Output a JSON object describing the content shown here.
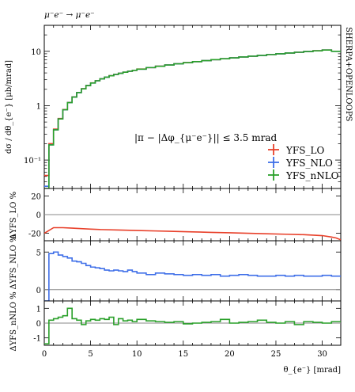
{
  "header": {
    "process": "μ⁻e⁻ → μ⁻e⁻",
    "generator": "SHERPA+OPENLOOPS",
    "cut": "|π − |Δφ_{μ⁻e⁻}|| ≤ 3.5 mrad"
  },
  "colors": {
    "LO": "#e8402a",
    "NLO": "#3f6fe8",
    "nNLO": "#2aa02a",
    "ref": "#888888"
  },
  "chart_data": [
    {
      "type": "line",
      "panel": "main",
      "ylabel": "dσ / dθ_{e⁻} [μb/mrad]",
      "yscale": "log",
      "ylim": [
        0.03,
        30
      ],
      "yticks": [
        "10",
        "1",
        "10⁻¹"
      ],
      "xlim": [
        0,
        32
      ],
      "bin_edges": [
        0,
        0.5,
        1,
        1.5,
        2,
        2.5,
        3,
        3.5,
        4,
        4.5,
        5,
        5.5,
        6,
        6.5,
        7,
        7.5,
        8,
        8.5,
        9,
        9.5,
        10,
        11,
        12,
        13,
        14,
        15,
        16,
        17,
        18,
        19,
        20,
        21,
        22,
        23,
        24,
        25,
        26,
        27,
        28,
        29,
        30,
        31,
        32
      ],
      "legend": [
        "YFS_LO",
        "YFS_NLO",
        "YFS_nNLO"
      ],
      "legend_position": "lower-right",
      "series": [
        {
          "name": "YFS_LO",
          "color": "#e8402a",
          "values": [
            0.052,
            0.2,
            0.37,
            0.58,
            0.85,
            1.15,
            1.45,
            1.75,
            2.05,
            2.35,
            2.62,
            2.88,
            3.12,
            3.35,
            3.56,
            3.76,
            3.95,
            4.13,
            4.3,
            4.47,
            4.71,
            5.02,
            5.32,
            5.61,
            5.9,
            6.18,
            6.46,
            6.74,
            7.02,
            7.3,
            7.58,
            7.86,
            8.14,
            8.43,
            8.72,
            9.01,
            9.3,
            9.6,
            9.91,
            10.22,
            10.55,
            10.0
          ]
        },
        {
          "name": "YFS_NLO",
          "color": "#3f6fe8",
          "values": [
            0.033,
            0.19,
            0.36,
            0.57,
            0.84,
            1.14,
            1.44,
            1.74,
            2.04,
            2.34,
            2.61,
            2.87,
            3.11,
            3.34,
            3.55,
            3.75,
            3.94,
            4.12,
            4.29,
            4.46,
            4.7,
            5.01,
            5.31,
            5.6,
            5.89,
            6.17,
            6.45,
            6.73,
            7.01,
            7.29,
            7.57,
            7.85,
            8.13,
            8.42,
            8.71,
            9.0,
            9.29,
            9.59,
            9.9,
            10.21,
            10.54,
            9.99
          ]
        },
        {
          "name": "YFS_nNLO",
          "color": "#2aa02a",
          "values": [
            0.03,
            0.19,
            0.36,
            0.57,
            0.84,
            1.14,
            1.44,
            1.74,
            2.04,
            2.34,
            2.61,
            2.87,
            3.11,
            3.34,
            3.55,
            3.75,
            3.94,
            4.12,
            4.29,
            4.46,
            4.7,
            5.01,
            5.31,
            5.6,
            5.89,
            6.17,
            6.45,
            6.73,
            7.01,
            7.29,
            7.57,
            7.85,
            8.13,
            8.42,
            8.71,
            9.0,
            9.29,
            9.59,
            9.9,
            10.21,
            10.54,
            9.99
          ]
        }
      ]
    },
    {
      "type": "line",
      "panel": "ratio-LO",
      "ylabel": "ΔYFS_LO %",
      "ylim": [
        -28,
        28
      ],
      "yticks": [
        20,
        0,
        -20
      ],
      "xlim": [
        0,
        32
      ],
      "series": [
        {
          "name": "YFS_LO",
          "color": "#e8402a",
          "x": [
            0,
            0.5,
            1,
            2,
            3,
            4,
            5,
            6,
            8,
            10,
            12,
            14,
            16,
            18,
            20,
            22,
            24,
            26,
            28,
            29,
            30,
            31,
            31.5,
            32
          ],
          "y": [
            -20,
            -17,
            -14,
            -14,
            -14.5,
            -15,
            -15.5,
            -16,
            -16.5,
            -17,
            -17.5,
            -18,
            -18.5,
            -19,
            -19.5,
            -20,
            -20.5,
            -21,
            -21.5,
            -22,
            -22.5,
            -24,
            -25,
            -27
          ]
        }
      ]
    },
    {
      "type": "line",
      "panel": "ratio-NLO",
      "ylabel": "ΔYFS_NLO %",
      "ylim": [
        -1.5,
        6.5
      ],
      "yticks": [
        5,
        0
      ],
      "xlim": [
        0,
        32
      ],
      "series": [
        {
          "name": "YFS_NLO",
          "color": "#3f6fe8",
          "bin_edges": [
            0,
            0.5,
            1,
            1.5,
            2,
            2.5,
            3,
            3.5,
            4,
            4.5,
            5,
            5.5,
            6,
            6.5,
            7,
            7.5,
            8,
            8.5,
            9,
            9.5,
            10,
            11,
            12,
            13,
            14,
            15,
            16,
            17,
            18,
            19,
            20,
            21,
            22,
            23,
            24,
            25,
            26,
            27,
            28,
            29,
            30,
            31,
            32
          ],
          "values": [
            -1.5,
            4.8,
            5.0,
            4.6,
            4.4,
            4.2,
            3.8,
            3.7,
            3.5,
            3.2,
            3.0,
            2.9,
            2.8,
            2.6,
            2.5,
            2.6,
            2.5,
            2.4,
            2.6,
            2.4,
            2.2,
            2.0,
            2.2,
            2.1,
            2.0,
            1.9,
            2.0,
            1.9,
            2.0,
            1.8,
            1.9,
            2.0,
            1.9,
            1.8,
            1.8,
            1.9,
            1.8,
            1.9,
            1.8,
            1.8,
            1.9,
            1.8
          ]
        }
      ]
    },
    {
      "type": "line",
      "panel": "ratio-nNLO",
      "ylabel": "ΔYFS_nNLO %",
      "ylim": [
        -1.5,
        1.5
      ],
      "yticks": [
        1,
        0,
        -1
      ],
      "xlabel": "θ_{e⁻} [mrad]",
      "xlim": [
        0,
        32
      ],
      "xticks": [
        0,
        5,
        10,
        15,
        20,
        25,
        30
      ],
      "series": [
        {
          "name": "YFS_nNLO",
          "color": "#2aa02a",
          "bin_edges": [
            0,
            0.5,
            1,
            1.5,
            2,
            2.5,
            3,
            3.5,
            4,
            4.5,
            5,
            5.5,
            6,
            6.5,
            7,
            7.5,
            8,
            8.5,
            9,
            9.5,
            10,
            11,
            12,
            13,
            14,
            15,
            16,
            17,
            18,
            19,
            20,
            21,
            22,
            23,
            24,
            25,
            26,
            27,
            28,
            29,
            30,
            31,
            32
          ],
          "values": [
            -1.4,
            0.2,
            0.3,
            0.4,
            0.5,
            1.0,
            0.3,
            0.2,
            -0.1,
            0.15,
            0.25,
            0.2,
            0.3,
            0.25,
            0.4,
            -0.1,
            0.3,
            0.15,
            0.2,
            0.1,
            0.25,
            0.15,
            0.1,
            0.05,
            0.1,
            -0.05,
            0.0,
            0.05,
            0.1,
            0.25,
            0.0,
            0.05,
            0.1,
            0.2,
            0.05,
            0.0,
            0.1,
            -0.1,
            0.1,
            0.05,
            0.0,
            0.1
          ]
        }
      ]
    }
  ]
}
